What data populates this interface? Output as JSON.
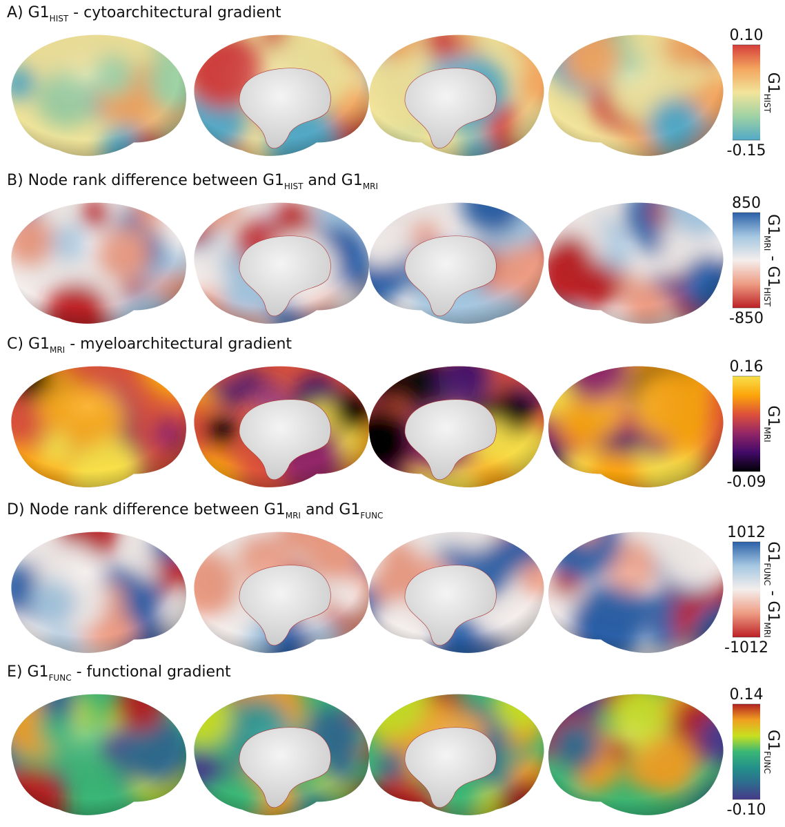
{
  "panels": [
    {
      "title": [
        {
          "text": "A) G1"
        },
        {
          "text": "HIST",
          "sub": true
        },
        {
          "text": " - cytoarchitectural gradient"
        }
      ],
      "colorbar": {
        "ticks": [
          -0.15,
          {
            "value": 0.1,
            "label": "0.10"
          }
        ],
        "label": [
          {
            "text": "G1"
          },
          {
            "text": "HIST",
            "sub": true
          }
        ],
        "colors": [
          "#52a9c6",
          "#9fd2a4",
          "#f2e49a",
          "#f3a55e",
          "#d53e3a"
        ]
      }
    },
    {
      "title": [
        {
          "text": "B) Node rank difference between G1"
        },
        {
          "text": "HIST",
          "sub": true
        },
        {
          "text": " and G1"
        },
        {
          "text": "MRI",
          "sub": true
        }
      ],
      "colorbar": {
        "ticks": [
          -850,
          850
        ],
        "label": [
          {
            "text": "G1"
          },
          {
            "text": "MRI",
            "sub": true
          },
          {
            "text": " - G1"
          },
          {
            "text": "HIST",
            "sub": true
          }
        ],
        "colors": [
          "#bd2126",
          "#ee9c83",
          "#f4eeec",
          "#a5c7e1",
          "#2b61a8"
        ]
      }
    },
    {
      "title": [
        {
          "text": "C) G1"
        },
        {
          "text": "MRI",
          "sub": true
        },
        {
          "text": " - myeloarchitectural gradient"
        }
      ],
      "colorbar": {
        "ticks": [
          -0.09,
          0.16
        ],
        "label": [
          {
            "text": "G1"
          },
          {
            "text": "MRI",
            "sub": true
          }
        ],
        "colors": [
          "#000004",
          "#420a68",
          "#932667",
          "#dd513a",
          "#fca50a",
          "#f8e04a"
        ]
      }
    },
    {
      "title": [
        {
          "text": "D) Node rank difference between G1"
        },
        {
          "text": "MRI",
          "sub": true
        },
        {
          "text": " and G1"
        },
        {
          "text": "FUNC",
          "sub": true
        }
      ],
      "colorbar": {
        "ticks": [
          -1012,
          1012
        ],
        "label": [
          {
            "text": "G1"
          },
          {
            "text": "FUNC",
            "sub": true
          },
          {
            "text": " - G1"
          },
          {
            "text": "MRI",
            "sub": true
          }
        ],
        "colors": [
          "#bd2126",
          "#ee9c83",
          "#f4eeec",
          "#a5c7e1",
          "#2b61a8"
        ]
      }
    },
    {
      "title": [
        {
          "text": "E) G1"
        },
        {
          "text": "FUNC",
          "sub": true
        },
        {
          "text": " - functional gradient"
        }
      ],
      "colorbar": {
        "ticks": [
          {
            "value": -0.1,
            "label": "-0.10"
          },
          0.14
        ],
        "label": [
          {
            "text": "G1"
          },
          {
            "text": "FUNC",
            "sub": true
          }
        ],
        "colors": [
          "#463a8a",
          "#2f6a8e",
          "#22918a",
          "#3ab776",
          "#c8e020",
          "#f0a020",
          "#b22222"
        ]
      }
    }
  ]
}
